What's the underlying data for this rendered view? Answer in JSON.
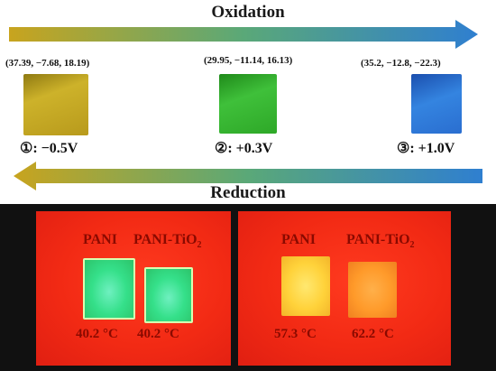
{
  "oxidation_label": "Oxidation",
  "reduction_label": "Reduction",
  "samples": [
    {
      "lab": "(37.39, −7.68, 18.19)",
      "potential": "①: −0.5V",
      "color": "#c8a81c"
    },
    {
      "lab": "(29.95, −11.14, 16.13)",
      "potential": "②: +0.3V",
      "color": "#2fae2a"
    },
    {
      "lab": "(35.2, −12.8, −22.3)",
      "potential": "③: +1.0V",
      "color": "#2a6fd0"
    }
  ],
  "ir_panels": [
    {
      "left_label": "PANI",
      "right_label_main": "PANI-TiO",
      "right_label_sub": "2",
      "left_temp": "40.2 °C",
      "right_temp": "40.2 °C"
    },
    {
      "left_label": "PANI",
      "right_label_main": "PANI-TiO",
      "right_label_sub": "2",
      "left_temp": "57.3 °C",
      "right_temp": "62.2 °C"
    }
  ],
  "colors": {
    "arrow_start": "#c8a41e",
    "arrow_mid": "#5aa878",
    "arrow_end": "#2f7fd0",
    "ir_background": "#f22a14",
    "ir_cool_sample": "#35e08a",
    "ir_warm_sample": "#ffd23a",
    "ir_hot_sample": "#ff9a2a"
  }
}
